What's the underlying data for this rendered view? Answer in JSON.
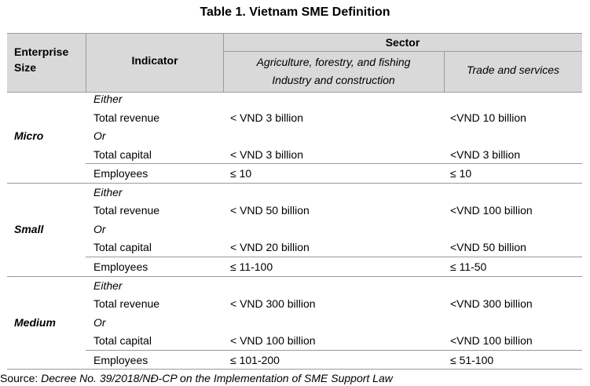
{
  "title": "Table 1. Vietnam SME Definition",
  "header": {
    "enterprise_size_line1": "Enterprise",
    "enterprise_size_line2": "Size",
    "indicator": "Indicator",
    "sector": "Sector",
    "sector_col1_line1": "Agriculture, forestry, and fishing",
    "sector_col1_line2": "Industry and construction",
    "sector_col2": "Trade and services"
  },
  "groups": [
    {
      "size": "Micro",
      "rows": [
        {
          "indicator": "Either",
          "col1": "",
          "col2": ""
        },
        {
          "indicator": "Total revenue",
          "col1": "< VND 3 billion",
          "col2": "<VND 10 billion"
        },
        {
          "indicator": "Or",
          "col1": "",
          "col2": ""
        },
        {
          "indicator": "Total capital",
          "col1": "< VND 3 billion",
          "col2": "<VND 3 billion"
        },
        {
          "indicator": "Employees",
          "col1": "≤ 10",
          "col2": "≤ 10"
        }
      ]
    },
    {
      "size": "Small",
      "rows": [
        {
          "indicator": "Either",
          "col1": "",
          "col2": ""
        },
        {
          "indicator": "Total revenue",
          "col1": "< VND 50 billion",
          "col2": "<VND 100 billion"
        },
        {
          "indicator": "Or",
          "col1": "",
          "col2": ""
        },
        {
          "indicator": "Total capital",
          "col1": "< VND 20 billion",
          "col2": "<VND 50 billion"
        },
        {
          "indicator": "Employees",
          "col1": "≤ 11-100",
          "col2": "≤ 11-50"
        }
      ]
    },
    {
      "size": "Medium",
      "rows": [
        {
          "indicator": "Either",
          "col1": "",
          "col2": ""
        },
        {
          "indicator": "Total revenue",
          "col1": "< VND 300 billion",
          "col2": "<VND 300 billion"
        },
        {
          "indicator": "Or",
          "col1": "",
          "col2": ""
        },
        {
          "indicator": "Total capital",
          "col1": "< VND 100 billion",
          "col2": "<VND 100 billion"
        },
        {
          "indicator": "Employees",
          "col1": "≤ 101-200",
          "col2": "≤ 51-100"
        }
      ]
    }
  ],
  "source": {
    "prefix": "Source: ",
    "text": "Decree No. 39/2018/NĐ-CP on the Implementation of SME Support Law"
  }
}
